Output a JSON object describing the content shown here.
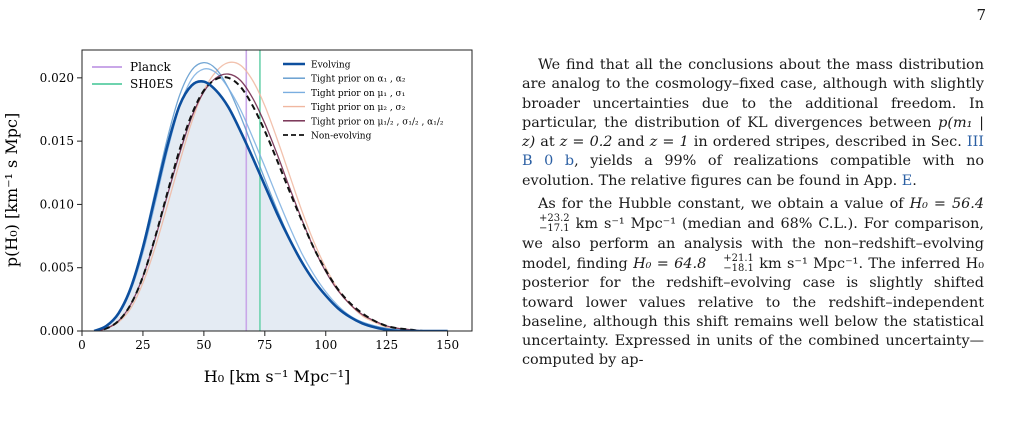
{
  "page_number": "7",
  "figure": {
    "x_axis_label": "H₀ [km s⁻¹ Mpc⁻¹]",
    "y_axis_label": "p(H₀) [km⁻¹ s Mpc]",
    "legend_left": [
      {
        "label": "Planck",
        "color": "#c9a7e8"
      },
      {
        "label": "SH0ES",
        "color": "#6ed3ae"
      }
    ],
    "legend_right": [
      {
        "label": "Evolving",
        "color": "#0d4f9e",
        "style": "solid-thick"
      },
      {
        "label": "Tight prior on α₁ , α₂",
        "color": "#5b97cc",
        "style": "solid"
      },
      {
        "label": "Tight prior on μ₁ , σ₁",
        "color": "#7aaee0",
        "style": "solid"
      },
      {
        "label": "Tight prior on μ₂ , σ₂",
        "color": "#f0b7a0",
        "style": "solid"
      },
      {
        "label": "Tight prior on μ₁/₂ , σ₁/₂ , α₁/₂",
        "color": "#6b1f44",
        "style": "solid"
      },
      {
        "label": "Non-evolving",
        "color": "#111111",
        "style": "dashed"
      }
    ]
  },
  "chart_data": {
    "type": "line",
    "xlim": [
      0,
      160
    ],
    "ylim": [
      0,
      0.0222
    ],
    "x_ticks": [
      0,
      25,
      50,
      75,
      100,
      125,
      150
    ],
    "y_ticks": [
      0.0,
      0.005,
      0.01,
      0.015,
      0.02
    ],
    "x_tick_labels": [
      "0",
      "25",
      "50",
      "75",
      "100",
      "125",
      "150"
    ],
    "y_tick_labels": [
      "0.000",
      "0.005",
      "0.010",
      "0.015",
      "0.020"
    ],
    "vertical_lines": [
      {
        "name": "Planck",
        "x": 67.4,
        "color": "#c9a7e8"
      },
      {
        "name": "SH0ES",
        "x": 73.0,
        "color": "#6ed3ae"
      }
    ],
    "series": [
      {
        "name": "Tight prior on μ₂ , σ₂",
        "color": "#f0b7a0",
        "x": [
          5,
          10,
          15,
          20,
          25,
          30,
          35,
          40,
          45,
          50,
          55,
          60,
          65,
          70,
          75,
          80,
          85,
          90,
          95,
          100,
          105,
          110,
          115,
          120,
          125,
          130,
          135,
          140,
          145,
          150
        ],
        "y": [
          0.0,
          0.0002,
          0.0007,
          0.0018,
          0.0038,
          0.0066,
          0.0099,
          0.0133,
          0.0165,
          0.019,
          0.0205,
          0.0212,
          0.021,
          0.0198,
          0.0178,
          0.0152,
          0.0124,
          0.0096,
          0.0071,
          0.005,
          0.0033,
          0.0021,
          0.0012,
          0.0007,
          0.0003,
          0.0002,
          0.0001,
          0.0,
          0.0,
          0.0
        ]
      },
      {
        "name": "Tight prior on α₁ , α₂",
        "color": "#5b97cc",
        "x": [
          5,
          10,
          15,
          20,
          25,
          30,
          35,
          40,
          45,
          50,
          55,
          60,
          65,
          70,
          75,
          80,
          85,
          90,
          95,
          100,
          105,
          110,
          115,
          120,
          125,
          130,
          135,
          140,
          145,
          150
        ],
        "y": [
          0.0,
          0.0004,
          0.0014,
          0.0035,
          0.0068,
          0.011,
          0.0152,
          0.0186,
          0.0206,
          0.0212,
          0.0207,
          0.0192,
          0.017,
          0.0145,
          0.012,
          0.0096,
          0.0074,
          0.0056,
          0.004,
          0.0028,
          0.0018,
          0.0011,
          0.0007,
          0.0004,
          0.0002,
          0.0001,
          0.0,
          0.0,
          0.0,
          0.0
        ]
      },
      {
        "name": "Tight prior on μ₁ , σ₁",
        "color": "#7aaee0",
        "x": [
          5,
          10,
          15,
          20,
          25,
          30,
          35,
          40,
          45,
          50,
          55,
          60,
          65,
          70,
          75,
          80,
          85,
          90,
          95,
          100,
          105,
          110,
          115,
          120,
          125,
          130,
          135,
          140,
          145,
          150
        ],
        "y": [
          0.0,
          0.0004,
          0.0013,
          0.0032,
          0.0062,
          0.0101,
          0.0142,
          0.0177,
          0.0199,
          0.0207,
          0.0204,
          0.0192,
          0.0175,
          0.0153,
          0.013,
          0.0106,
          0.0083,
          0.0062,
          0.0045,
          0.0031,
          0.002,
          0.0012,
          0.0007,
          0.0004,
          0.0002,
          0.0001,
          0.0,
          0.0,
          0.0,
          0.0
        ]
      },
      {
        "name": "Tight prior on μ₁/₂ , σ₁/₂ , α₁/₂",
        "color": "#6b1f44",
        "x": [
          5,
          10,
          15,
          20,
          25,
          30,
          35,
          40,
          45,
          50,
          55,
          60,
          65,
          70,
          75,
          80,
          85,
          90,
          95,
          100,
          105,
          110,
          115,
          120,
          125,
          130,
          135,
          140,
          145,
          150
        ],
        "y": [
          0.0,
          0.0002,
          0.0008,
          0.0021,
          0.0043,
          0.0073,
          0.0107,
          0.014,
          0.0169,
          0.0189,
          0.02,
          0.0203,
          0.0198,
          0.0184,
          0.0164,
          0.014,
          0.0114,
          0.0089,
          0.0066,
          0.0047,
          0.0032,
          0.0021,
          0.0013,
          0.0008,
          0.0004,
          0.0002,
          0.0001,
          0.0,
          0.0,
          0.0
        ]
      },
      {
        "name": "Non-evolving",
        "color": "#111111",
        "dashed": true,
        "x": [
          5,
          10,
          15,
          20,
          25,
          30,
          35,
          40,
          45,
          50,
          55,
          60,
          65,
          70,
          75,
          80,
          85,
          90,
          95,
          100,
          105,
          110,
          115,
          120,
          125,
          130,
          135,
          140,
          145,
          150
        ],
        "y": [
          0.0,
          0.0002,
          0.0008,
          0.0021,
          0.0043,
          0.0074,
          0.0109,
          0.0143,
          0.0171,
          0.019,
          0.0199,
          0.02,
          0.0193,
          0.0178,
          0.0158,
          0.0135,
          0.0111,
          0.0088,
          0.0066,
          0.0048,
          0.0033,
          0.0022,
          0.0014,
          0.0008,
          0.0004,
          0.0002,
          0.0001,
          0.0,
          0.0,
          0.0
        ]
      },
      {
        "name": "Evolving",
        "color": "#0d4f9e",
        "thick": true,
        "fill": "#dfe7f1",
        "x": [
          5,
          10,
          15,
          20,
          25,
          30,
          35,
          40,
          45,
          50,
          55,
          60,
          65,
          70,
          75,
          80,
          85,
          90,
          95,
          100,
          105,
          110,
          115,
          120,
          125,
          130,
          135,
          140,
          145,
          150
        ],
        "y": [
          0.0,
          0.0004,
          0.0014,
          0.0034,
          0.0066,
          0.0106,
          0.0146,
          0.0178,
          0.0194,
          0.0197,
          0.019,
          0.0177,
          0.0158,
          0.0137,
          0.0115,
          0.0093,
          0.0073,
          0.0055,
          0.004,
          0.0028,
          0.0018,
          0.0011,
          0.0006,
          0.0003,
          0.0001,
          0.0,
          0.0,
          0.0,
          0.0,
          0.0
        ]
      }
    ]
  },
  "text": {
    "p1_a": "We find that all the conclusions about the mass distribution are analog to the cosmology–fixed case, although with slightly broader uncertainties due to the additional freedom. In particular, the distribution of KL divergences between ",
    "p1_math1": "p(m₁ | z)",
    "p1_b": " at ",
    "p1_math2": "z = 0.2",
    "p1_c": " and ",
    "p1_math3": "z = 1",
    "p1_d": " in ordered stripes, described in Sec. ",
    "p1_ref1": "III B 0 b",
    "p1_e": ", yields a 99% of realizations compatible with no evolution. The relative figures can be found in App. ",
    "p1_ref2": "E",
    "p1_f": ".",
    "p2_a": "As for the Hubble constant, we obtain a value of ",
    "p2_h0_1": "H₀ = 56.4",
    "p2_h0_1_sup": "+23.2",
    "p2_h0_1_sub": "−17.1",
    "p2_b": " km s⁻¹ Mpc⁻¹ (median and 68% C.L.). For comparison, we also perform an analysis with the non–redshift–evolving model, finding ",
    "p2_h0_2": "H₀ = 64.8",
    "p2_h0_2_sup": "+21.1",
    "p2_h0_2_sub": "−18.1",
    "p2_c": " km s⁻¹ Mpc⁻¹. The inferred H₀ posterior for the redshift–evolving case is slightly shifted toward lower values relative to the redshift–independent baseline, although this shift remains well below the statistical uncertainty. Expressed in units of the combined uncertainty—computed by ap-"
  }
}
